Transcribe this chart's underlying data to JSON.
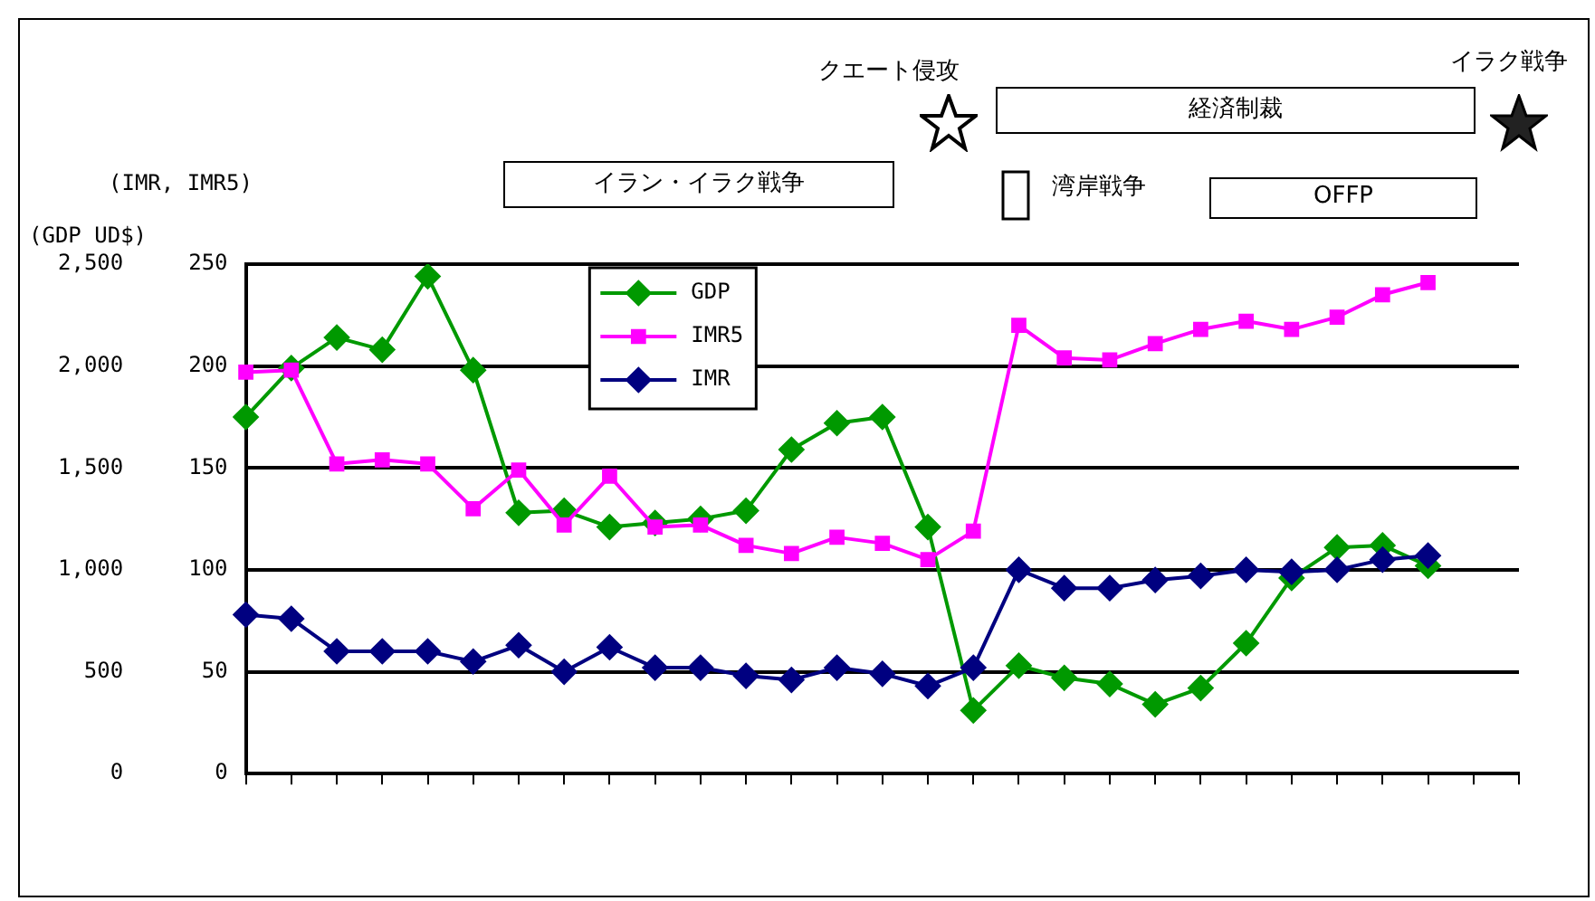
{
  "chart_data": {
    "type": "line",
    "ylabel": "(IMR, IMR5)",
    "y2label": "(GDP UD$)",
    "categories": [
      null,
      null,
      null,
      null,
      null,
      null,
      null,
      null,
      null,
      null,
      null,
      null,
      null,
      null,
      null,
      null,
      null,
      null,
      null,
      null,
      null,
      null,
      null,
      null,
      null,
      null,
      null,
      null,
      null
    ],
    "series": [
      {
        "name": "GDP",
        "color": "#009900",
        "marker": "diamond",
        "axis": "y2",
        "values": [
          1750,
          1990,
          2140,
          2080,
          2440,
          1980,
          1280,
          1290,
          1210,
          1230,
          1250,
          1290,
          1590,
          1720,
          1750,
          1210,
          310,
          530,
          470,
          440,
          340,
          420,
          640,
          960,
          1110,
          1120,
          1020,
          null,
          null
        ]
      },
      {
        "name": "IMR5",
        "color": "#ff00ff",
        "marker": "square",
        "values": [
          197,
          198,
          152,
          154,
          152,
          130,
          149,
          122,
          146,
          121,
          122,
          112,
          108,
          116,
          113,
          105,
          119,
          220,
          204,
          203,
          211,
          218,
          222,
          218,
          224,
          235,
          241,
          null,
          null
        ]
      },
      {
        "name": "IMR",
        "color": "#000080",
        "marker": "diamond",
        "values": [
          78,
          76,
          60,
          60,
          60,
          55,
          63,
          50,
          62,
          52,
          52,
          48,
          46,
          52,
          49,
          43,
          52,
          100,
          91,
          91,
          95,
          97,
          100,
          99,
          100,
          105,
          107,
          null,
          null
        ]
      }
    ],
    "ylim": [
      0,
      250
    ],
    "yticks": [
      0,
      50,
      100,
      150,
      200,
      250
    ],
    "y2lim": [
      0,
      2500
    ],
    "y2ticks": [
      0,
      500,
      {
        "value": 1000,
        "label": "1,000"
      },
      {
        "value": 1500,
        "label": "1,500"
      },
      {
        "value": 2000,
        "label": "2,000"
      },
      {
        "value": 2500,
        "label": "2,500"
      }
    ],
    "grid": "y",
    "legend": "top",
    "line_style": "solid",
    "annotations": [
      "イラン・イラク戦争",
      "クエート侵攻",
      "経済制裁",
      "湾岸戦争",
      "OFFP",
      "イラク戦争"
    ]
  }
}
